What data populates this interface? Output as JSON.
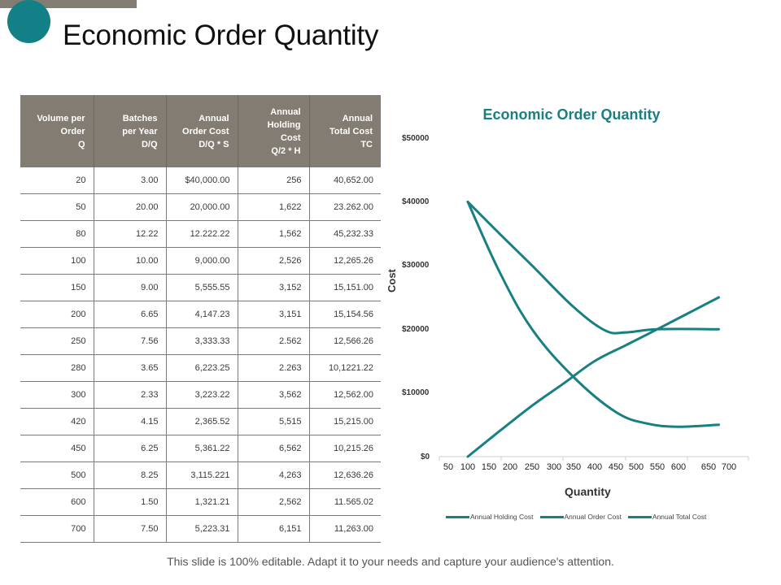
{
  "slide": {
    "title": "Economic Order Quantity",
    "footer": "This slide is 100% editable. Adapt it to your needs and capture your audience's attention.",
    "colors": {
      "accent": "#137f87",
      "header_bar": "#837c72",
      "line": "#187f83"
    }
  },
  "table": {
    "headers": [
      [
        "Volume per",
        "Order",
        "Q"
      ],
      [
        "Batches",
        "per Year",
        "D/Q"
      ],
      [
        "Annual",
        "Order Cost",
        "D/Q * S"
      ],
      [
        "Annual",
        "Holding",
        "Cost",
        "Q/2 * H"
      ],
      [
        "Annual",
        "Total Cost",
        "TC"
      ]
    ],
    "rows": [
      [
        "20",
        "3.00",
        "$40,000.00",
        "256",
        "40,652.00"
      ],
      [
        "50",
        "20.00",
        "20,000.00",
        "1,622",
        "23.262.00"
      ],
      [
        "80",
        "12.22",
        "12.222.22",
        "1,562",
        "45,232.33"
      ],
      [
        "100",
        "10.00",
        "9,000.00",
        "2,526",
        "12,265.26"
      ],
      [
        "150",
        "9.00",
        "5,555.55",
        "3,152",
        "15,151.00"
      ],
      [
        "200",
        "6.65",
        "4,147.23",
        "3,151",
        "15,154.56"
      ],
      [
        "250",
        "7.56",
        "3,333.33",
        "2.562",
        "12,566.26"
      ],
      [
        "280",
        "3.65",
        "6,223.25",
        "2.263",
        "10,1221.22"
      ],
      [
        "300",
        "2.33",
        "3,223.22",
        "3,562",
        "12,562.00"
      ],
      [
        "420",
        "4.15",
        "2,365.52",
        "5,515",
        "15,215.00"
      ],
      [
        "450",
        "6.25",
        "5,361.22",
        "6,562",
        "10,215.26"
      ],
      [
        "500",
        "8.25",
        "3,115.221",
        "4,263",
        "12,636.26"
      ],
      [
        "600",
        "1.50",
        "1,321.21",
        "2,562",
        "11.565.02"
      ],
      [
        "700",
        "7.50",
        "5,223.31",
        "6,151",
        "11,263.00"
      ]
    ]
  },
  "chart_data": {
    "type": "line",
    "title": "Economic Order Quantity",
    "xlabel": "Quantity",
    "ylabel": "Cost",
    "x_tick_labels": [
      "50",
      "100",
      "150",
      "200",
      "250",
      "300",
      "350",
      "400",
      "450",
      "500",
      "550",
      "600",
      "650",
      "700"
    ],
    "y_tick_labels": [
      "$0",
      "$10000",
      "$20000",
      "$30000",
      "$40000",
      "$50000"
    ],
    "ylim": [
      0,
      50000
    ],
    "grid": false,
    "legend_position": "bottom",
    "series": [
      {
        "name": "Annual Holding Cost",
        "points": [
          [
            100,
            0
          ],
          [
            175,
            4000
          ],
          [
            250,
            8000
          ],
          [
            325,
            11500
          ],
          [
            400,
            15000
          ],
          [
            475,
            17500
          ],
          [
            550,
            20000
          ],
          [
            675,
            25000
          ]
        ]
      },
      {
        "name": "Annual Order Cost",
        "points": [
          [
            100,
            40000
          ],
          [
            175,
            29000
          ],
          [
            250,
            20000
          ],
          [
            350,
            12500
          ],
          [
            450,
            7000
          ],
          [
            525,
            5200
          ],
          [
            600,
            4700
          ],
          [
            675,
            5000
          ]
        ]
      },
      {
        "name": "Annual Total Cost",
        "points": [
          [
            100,
            40000
          ],
          [
            175,
            35000
          ],
          [
            250,
            30000
          ],
          [
            350,
            23500
          ],
          [
            425,
            19800
          ],
          [
            475,
            19500
          ],
          [
            550,
            20000
          ],
          [
            675,
            20000
          ]
        ]
      }
    ]
  },
  "chart_labels": {
    "title": "Economic Order Quantity",
    "ylabel": "Cost",
    "xlabel": "Quantity",
    "yticks": [
      "$50000",
      "$40000",
      "$30000",
      "$20000",
      "$10000",
      "$0"
    ],
    "xticks": [
      "50",
      "100",
      "150",
      "200",
      "250",
      "300",
      "350",
      "400",
      "450",
      "500",
      "550",
      "600",
      "650",
      "700"
    ],
    "legend": [
      "Annual Holding Cost",
      "Annual Order Cost",
      "Annual Total Cost"
    ]
  }
}
